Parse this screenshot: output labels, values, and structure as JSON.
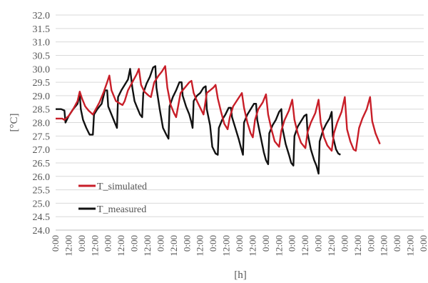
{
  "chart_data": {
    "type": "line",
    "xlabel": "[h]",
    "ylabel": "[°C]",
    "ylim": [
      24.0,
      32.0
    ],
    "y_ticks": [
      "24.0",
      "24.5",
      "25.0",
      "25.5",
      "26.0",
      "26.5",
      "27.0",
      "27.5",
      "28.0",
      "28.5",
      "29.0",
      "29.5",
      "30.0",
      "30.5",
      "31.0",
      "31.5",
      "32.0"
    ],
    "x_ticks": [
      "0:00",
      "12:00",
      "0:00",
      "12:00",
      "0:00",
      "12:00",
      "0:00",
      "12:00",
      "0:00",
      "12:00",
      "0:00",
      "12:00",
      "0:00",
      "12:00",
      "0:00",
      "12:00",
      "0:00",
      "12:00",
      "0:00",
      "12:00",
      "0:00",
      "12:00",
      "0:00",
      "12:00",
      "0:00",
      "12:00",
      "0:00",
      "12:00",
      "0:00"
    ],
    "xlim_hours": [
      0,
      336
    ],
    "grid": "horizontal",
    "legend_position": "bottom-left",
    "series": [
      {
        "name": "T_simulated",
        "color": "#c81e28",
        "points": [
          [
            0,
            28.15
          ],
          [
            6,
            28.15
          ],
          [
            8,
            28.1
          ],
          [
            12,
            28.25
          ],
          [
            16,
            28.5
          ],
          [
            20,
            28.8
          ],
          [
            22,
            29.15
          ],
          [
            24,
            28.9
          ],
          [
            27,
            28.6
          ],
          [
            30,
            28.45
          ],
          [
            34,
            28.3
          ],
          [
            36,
            28.45
          ],
          [
            40,
            28.75
          ],
          [
            44,
            29.15
          ],
          [
            47,
            29.5
          ],
          [
            49,
            29.75
          ],
          [
            51,
            29.2
          ],
          [
            55,
            28.8
          ],
          [
            59,
            28.7
          ],
          [
            61,
            28.65
          ],
          [
            63,
            28.8
          ],
          [
            66,
            29.2
          ],
          [
            70,
            29.5
          ],
          [
            74,
            29.8
          ],
          [
            76,
            30.0
          ],
          [
            78,
            29.4
          ],
          [
            81,
            29.15
          ],
          [
            85,
            29.0
          ],
          [
            87,
            28.95
          ],
          [
            90,
            29.5
          ],
          [
            94,
            29.75
          ],
          [
            97,
            29.9
          ],
          [
            100,
            30.1
          ],
          [
            102,
            29.3
          ],
          [
            105,
            28.65
          ],
          [
            108,
            28.35
          ],
          [
            110,
            28.2
          ],
          [
            114,
            29.1
          ],
          [
            118,
            29.3
          ],
          [
            122,
            29.5
          ],
          [
            124,
            29.55
          ],
          [
            126,
            29.1
          ],
          [
            129,
            28.8
          ],
          [
            132,
            28.55
          ],
          [
            135,
            28.3
          ],
          [
            138,
            29.1
          ],
          [
            141,
            29.2
          ],
          [
            144,
            29.3
          ],
          [
            146,
            29.4
          ],
          [
            148,
            28.9
          ],
          [
            151,
            28.4
          ],
          [
            154,
            27.95
          ],
          [
            157,
            27.75
          ],
          [
            159,
            28.2
          ],
          [
            162,
            28.6
          ],
          [
            166,
            28.85
          ],
          [
            170,
            29.1
          ],
          [
            172,
            28.55
          ],
          [
            175,
            28.0
          ],
          [
            178,
            27.6
          ],
          [
            180,
            27.45
          ],
          [
            182,
            28.1
          ],
          [
            185,
            28.5
          ],
          [
            189,
            28.75
          ],
          [
            192,
            29.05
          ],
          [
            194,
            28.3
          ],
          [
            197,
            27.75
          ],
          [
            200,
            27.3
          ],
          [
            204,
            27.1
          ],
          [
            206,
            27.7
          ],
          [
            209,
            28.1
          ],
          [
            213,
            28.45
          ],
          [
            216,
            28.85
          ],
          [
            218,
            28.1
          ],
          [
            221,
            27.6
          ],
          [
            224,
            27.25
          ],
          [
            228,
            27.05
          ],
          [
            230,
            27.65
          ],
          [
            233,
            28.0
          ],
          [
            237,
            28.35
          ],
          [
            240,
            28.85
          ],
          [
            242,
            28.0
          ],
          [
            245,
            27.45
          ],
          [
            248,
            27.15
          ],
          [
            252,
            26.95
          ],
          [
            254,
            27.6
          ],
          [
            257,
            28.0
          ],
          [
            261,
            28.4
          ],
          [
            264,
            28.95
          ],
          [
            266,
            27.75
          ],
          [
            269,
            27.3
          ],
          [
            272,
            27.0
          ],
          [
            274,
            26.95
          ],
          [
            277,
            27.8
          ],
          [
            280,
            28.15
          ],
          [
            284,
            28.5
          ],
          [
            287,
            28.95
          ],
          [
            289,
            28.05
          ],
          [
            292,
            27.6
          ],
          [
            296,
            27.2
          ]
        ]
      },
      {
        "name": "T_measured",
        "color": "#111111",
        "points": [
          [
            0,
            28.5
          ],
          [
            5,
            28.5
          ],
          [
            8,
            28.45
          ],
          [
            9,
            28.0
          ],
          [
            12,
            28.25
          ],
          [
            16,
            28.5
          ],
          [
            20,
            28.7
          ],
          [
            22,
            29.05
          ],
          [
            23,
            28.5
          ],
          [
            25,
            28.1
          ],
          [
            28,
            27.8
          ],
          [
            31,
            27.55
          ],
          [
            34,
            27.55
          ],
          [
            35,
            28.3
          ],
          [
            38,
            28.5
          ],
          [
            42,
            28.7
          ],
          [
            45,
            29.2
          ],
          [
            47,
            29.2
          ],
          [
            48,
            28.6
          ],
          [
            51,
            28.3
          ],
          [
            54,
            28.0
          ],
          [
            56,
            27.8
          ],
          [
            57,
            28.95
          ],
          [
            60,
            29.2
          ],
          [
            63,
            29.4
          ],
          [
            66,
            29.6
          ],
          [
            68,
            30.0
          ],
          [
            70,
            29.3
          ],
          [
            72,
            28.8
          ],
          [
            74,
            28.6
          ],
          [
            77,
            28.3
          ],
          [
            79,
            28.2
          ],
          [
            80,
            29.1
          ],
          [
            83,
            29.45
          ],
          [
            86,
            29.7
          ],
          [
            89,
            30.05
          ],
          [
            91,
            30.1
          ],
          [
            92,
            29.3
          ],
          [
            95,
            28.5
          ],
          [
            98,
            27.8
          ],
          [
            101,
            27.55
          ],
          [
            103,
            27.4
          ],
          [
            104,
            28.6
          ],
          [
            107,
            28.95
          ],
          [
            110,
            29.2
          ],
          [
            113,
            29.5
          ],
          [
            115,
            29.5
          ],
          [
            116,
            29.0
          ],
          [
            119,
            28.6
          ],
          [
            122,
            28.3
          ],
          [
            124,
            28.0
          ],
          [
            125,
            27.8
          ],
          [
            126,
            28.8
          ],
          [
            129,
            29.0
          ],
          [
            132,
            29.1
          ],
          [
            135,
            29.3
          ],
          [
            137,
            29.35
          ],
          [
            138,
            28.5
          ],
          [
            141,
            27.9
          ],
          [
            143,
            27.1
          ],
          [
            146,
            26.85
          ],
          [
            148,
            26.8
          ],
          [
            149,
            27.8
          ],
          [
            152,
            28.1
          ],
          [
            155,
            28.3
          ],
          [
            158,
            28.55
          ],
          [
            160,
            28.55
          ],
          [
            161,
            28.2
          ],
          [
            164,
            27.8
          ],
          [
            167,
            27.4
          ],
          [
            169,
            27.1
          ],
          [
            171,
            26.8
          ],
          [
            172,
            28.0
          ],
          [
            175,
            28.3
          ],
          [
            178,
            28.5
          ],
          [
            181,
            28.7
          ],
          [
            183,
            28.7
          ],
          [
            184,
            28.1
          ],
          [
            187,
            27.5
          ],
          [
            190,
            26.9
          ],
          [
            192,
            26.6
          ],
          [
            194,
            26.45
          ],
          [
            195,
            27.6
          ],
          [
            198,
            27.9
          ],
          [
            201,
            28.1
          ],
          [
            204,
            28.4
          ],
          [
            206,
            28.5
          ],
          [
            207,
            27.8
          ],
          [
            210,
            27.2
          ],
          [
            213,
            26.8
          ],
          [
            215,
            26.5
          ],
          [
            217,
            26.4
          ],
          [
            218,
            27.5
          ],
          [
            221,
            27.85
          ],
          [
            224,
            28.05
          ],
          [
            227,
            28.25
          ],
          [
            229,
            28.3
          ],
          [
            230,
            27.6
          ],
          [
            233,
            27.0
          ],
          [
            236,
            26.6
          ],
          [
            238,
            26.4
          ],
          [
            240,
            26.1
          ],
          [
            241,
            27.3
          ],
          [
            244,
            27.7
          ],
          [
            247,
            27.95
          ],
          [
            250,
            28.15
          ],
          [
            252,
            28.4
          ],
          [
            253,
            27.5
          ],
          [
            256,
            27.0
          ],
          [
            258,
            26.85
          ],
          [
            260,
            26.8
          ]
        ]
      }
    ]
  }
}
